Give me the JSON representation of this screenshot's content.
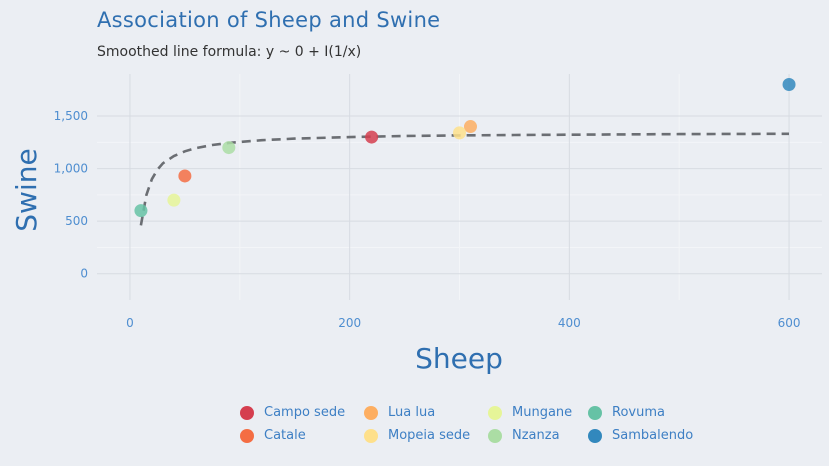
{
  "chart_data": {
    "type": "scatter",
    "title": "Association of Sheep and Swine",
    "subtitle": "Smoothed line formula: y ~ 0 + I(1/x)",
    "xlabel": "Sheep",
    "ylabel": "Swine",
    "xlim": [
      -30,
      630
    ],
    "ylim": [
      -250,
      1900
    ],
    "x_ticks": [
      0,
      200,
      400,
      600
    ],
    "x_tick_labels": [
      "0",
      "200",
      "400",
      "600"
    ],
    "y_ticks": [
      0,
      500,
      1000,
      1500
    ],
    "y_tick_labels": [
      "0",
      "500",
      "1,000",
      "1,500"
    ],
    "grid": true,
    "legend_position": "bottom",
    "points": [
      {
        "name": "Campo sede",
        "x": 220,
        "y": 1300,
        "color": "#d53e4f"
      },
      {
        "name": "Catale",
        "x": 50,
        "y": 930,
        "color": "#f46d43"
      },
      {
        "name": "Lua lua",
        "x": 310,
        "y": 1400,
        "color": "#fdae61"
      },
      {
        "name": "Mopeia sede",
        "x": 300,
        "y": 1340,
        "color": "#fee08b"
      },
      {
        "name": "Mungane",
        "x": 40,
        "y": 700,
        "color": "#e6f598"
      },
      {
        "name": "Nzanza",
        "x": 90,
        "y": 1200,
        "color": "#abdda4"
      },
      {
        "name": "Rovuma",
        "x": 10,
        "y": 600,
        "color": "#66c2a5"
      },
      {
        "name": "Sambalendo",
        "x": 600,
        "y": 1800,
        "color": "#3288bd"
      }
    ],
    "smooth_line": {
      "style": "dashed",
      "color": "#6b6e73",
      "x": [
        10,
        15,
        20,
        25,
        30,
        40,
        50,
        60,
        75,
        90,
        120,
        150,
        200,
        250,
        300,
        350,
        400,
        500,
        600
      ],
      "y": [
        460,
        750,
        900,
        990,
        1050,
        1120,
        1165,
        1195,
        1225,
        1245,
        1270,
        1285,
        1300,
        1310,
        1316,
        1320,
        1323,
        1328,
        1331
      ]
    }
  }
}
